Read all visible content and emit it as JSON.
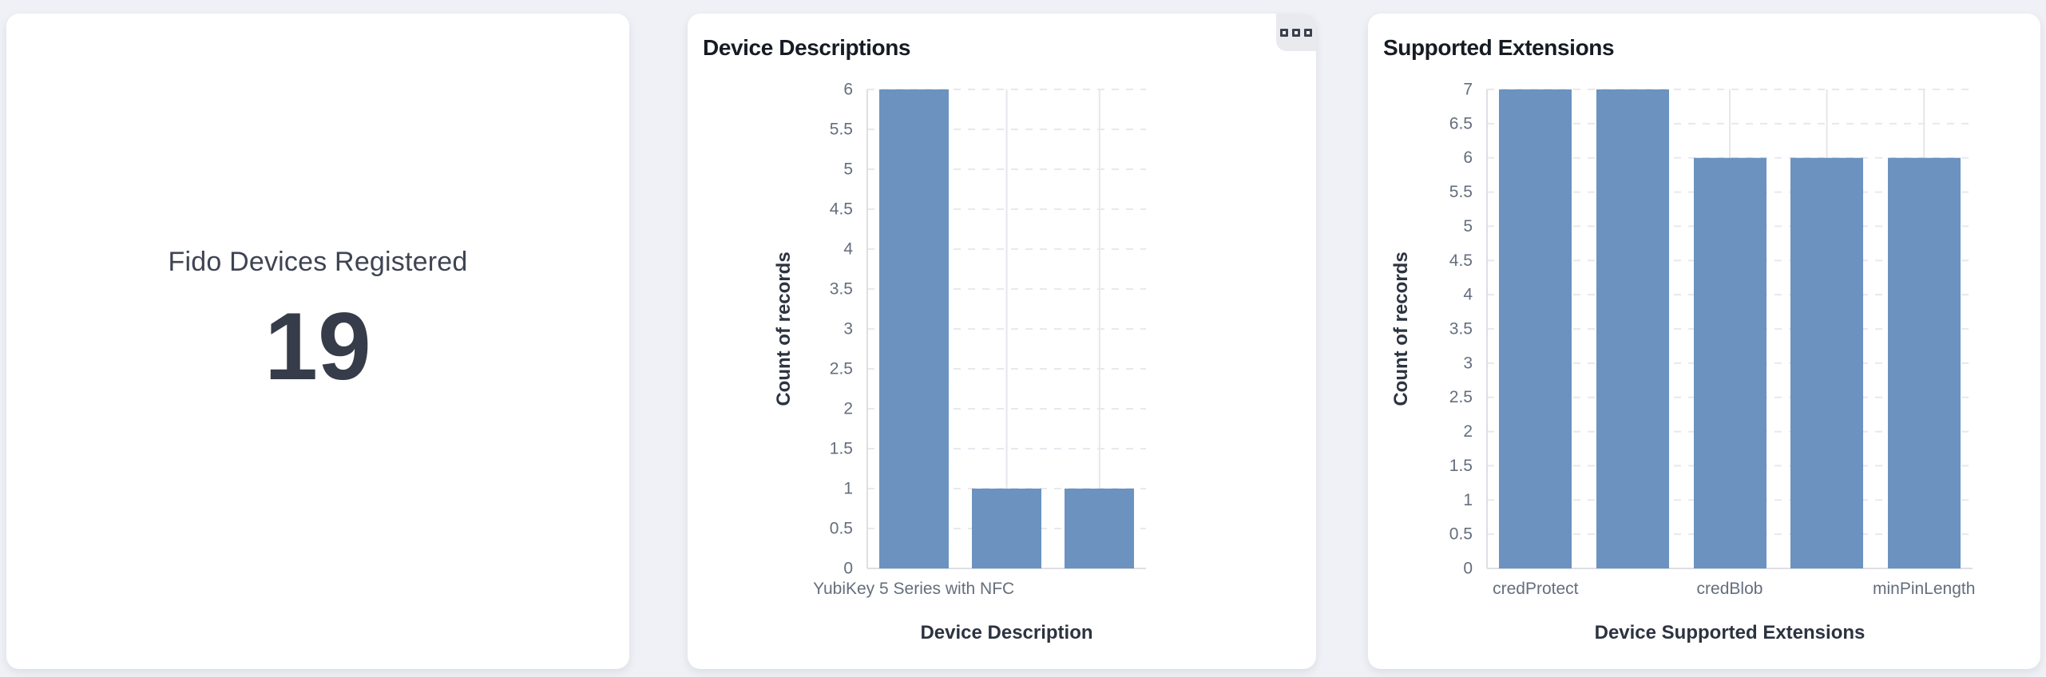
{
  "page": {
    "background": "#eff1f6"
  },
  "stat_card": {
    "label": "Fido Devices Registered",
    "value": "19"
  },
  "colors": {
    "bar": "#6c92bf",
    "card_background": "#ffffff",
    "card_title": "#171b23",
    "tick_label": "#646e7d",
    "axis_title": "#2c3340",
    "stat_text": "#3e4453"
  },
  "device_card": {
    "options_icon": "three-squares"
  },
  "chart_data": [
    {
      "type": "bar",
      "title": "Device Descriptions",
      "values": [
        6,
        1,
        1
      ],
      "x_tick_labels": [
        {
          "bar_index": 0,
          "label": "YubiKey 5 Series with NFC"
        }
      ],
      "xlabel": "Device Description",
      "ylabel": "Count of records",
      "ylim": [
        0,
        6
      ],
      "ytick_interval": 0.5,
      "grid": true,
      "legend": "none",
      "bar_color": "#6c92bf"
    },
    {
      "type": "bar",
      "title": "Supported Extensions",
      "values": [
        7,
        7,
        6,
        6,
        6
      ],
      "x_tick_labels": [
        {
          "bar_index": 0,
          "label": "credProtect"
        },
        {
          "bar_index": 2,
          "label": "credBlob"
        },
        {
          "bar_index": 4,
          "label": "minPinLength"
        }
      ],
      "xlabel": "Device Supported Extensions",
      "ylabel": "Count of records",
      "ylim": [
        0,
        7
      ],
      "ytick_interval": 0.5,
      "grid": true,
      "legend": "none",
      "bar_color": "#6c92bf"
    }
  ]
}
